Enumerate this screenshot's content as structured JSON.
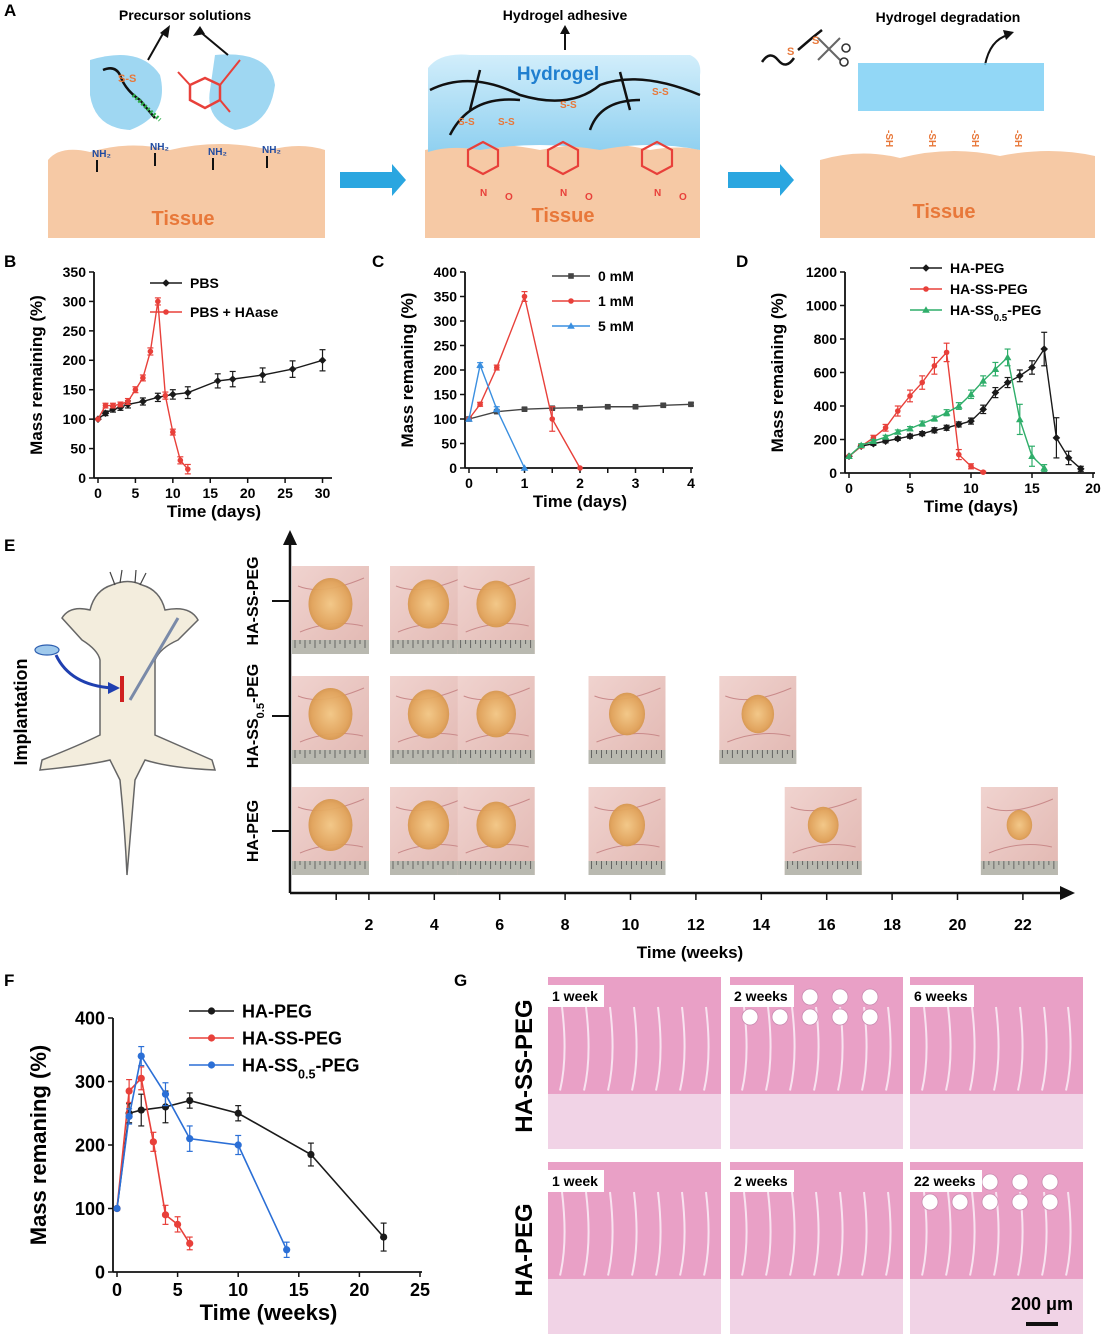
{
  "panel_labels": {
    "a": "A",
    "b": "B",
    "c": "C",
    "d": "D",
    "e": "E",
    "f": "F",
    "g": "G"
  },
  "schematic": {
    "precursor_title": "Precursor solutions",
    "adhesive_title": "Hydrogel adhesive",
    "degradation_title": "Hydrogel degradation",
    "hydrogel_label": "Hydrogel",
    "tissue_label": "Tissue",
    "amine_label": "NH₂",
    "disulfide_label": "S-S",
    "thiol_label": "-SH",
    "s_label": "S",
    "n_label": "N",
    "o_label": "O",
    "colors": {
      "tissue": "#f6c9a5",
      "hydrogel": "#9fd7f2",
      "arrow": "#2aa6e0",
      "tissue_text": "#e8783a",
      "hydrogel_text": "#1f7fd0"
    }
  },
  "panel_e": {
    "implantation_label": "Implantation",
    "rows": [
      "HA-SS-PEG",
      "HA-SS0.5-PEG",
      "HA-PEG"
    ],
    "xlabel": "Time (weeks)",
    "ticks": [
      "2",
      "4",
      "6",
      "8",
      "10",
      "12",
      "14",
      "16",
      "18",
      "20",
      "22"
    ],
    "photo_weeks": {
      "HA-SS-PEG": [
        1,
        4,
        6
      ],
      "HA-SS0.5-PEG": [
        1,
        4,
        6,
        10,
        14
      ],
      "HA-PEG": [
        1,
        4,
        6,
        10,
        16,
        22
      ]
    }
  },
  "panel_g": {
    "row_labels": [
      "HA-SS-PEG",
      "HA-PEG"
    ],
    "labels_top": [
      "1 week",
      "2 weeks",
      "6 weeks"
    ],
    "labels_bottom": [
      "1 week",
      "2 weeks",
      "22 weeks"
    ],
    "scale_bar": "200 μm"
  },
  "chart_data": [
    {
      "id": "B",
      "type": "line",
      "xlabel": "Time (days)",
      "ylabel": "Mass remaining (%)",
      "xlim": [
        0,
        31
      ],
      "ylim": [
        0,
        350
      ],
      "xticks": [
        0,
        5,
        10,
        15,
        20,
        25,
        30
      ],
      "yticks": [
        0,
        50,
        100,
        150,
        200,
        250,
        300,
        350
      ],
      "series": [
        {
          "name": "PBS",
          "color": "#1a1a1a",
          "marker": "diamond",
          "x": [
            0,
            1,
            2,
            3,
            4,
            6,
            8,
            10,
            12,
            16,
            18,
            22,
            26,
            30
          ],
          "y": [
            100,
            110,
            117,
            120,
            125,
            130,
            137,
            142,
            145,
            165,
            168,
            175,
            185,
            200
          ],
          "err": [
            0,
            4,
            5,
            5,
            6,
            6,
            7,
            8,
            10,
            12,
            13,
            12,
            14,
            18
          ]
        },
        {
          "name": "PBS + HAase",
          "color": "#e8403a",
          "marker": "circle",
          "x": [
            0,
            1,
            2,
            3,
            4,
            5,
            6,
            7,
            8,
            9,
            10,
            11,
            12
          ],
          "y": [
            100,
            123,
            123,
            125,
            130,
            150,
            170,
            215,
            300,
            140,
            78,
            30,
            15
          ],
          "err": [
            0,
            4,
            4,
            4,
            5,
            5,
            5,
            6,
            6,
            6,
            5,
            6,
            8
          ]
        }
      ]
    },
    {
      "id": "C",
      "type": "line",
      "xlabel": "Time (days)",
      "ylabel": "Mass remaning (%)",
      "xlim": [
        0,
        4
      ],
      "ylim": [
        0,
        400
      ],
      "xticks": [
        0,
        0.5,
        1,
        1.5,
        2,
        2.5,
        3,
        3.5,
        4
      ],
      "xtick_labels": [
        "0",
        "",
        "1",
        "",
        "2",
        "",
        "3",
        "",
        "4"
      ],
      "yticks": [
        0,
        50,
        100,
        150,
        200,
        250,
        300,
        350,
        400
      ],
      "series": [
        {
          "name": "0 mM",
          "color": "#444444",
          "marker": "square",
          "x": [
            0,
            0.5,
            1,
            1.5,
            2,
            2.5,
            3,
            3.5,
            4
          ],
          "y": [
            100,
            115,
            120,
            122,
            123,
            125,
            125,
            128,
            130
          ],
          "err": [
            0,
            3,
            3,
            3,
            4,
            3,
            3,
            3,
            3
          ]
        },
        {
          "name": "1 mM",
          "color": "#e8403a",
          "marker": "circle",
          "x": [
            0,
            0.2,
            0.5,
            1,
            1.5,
            2
          ],
          "y": [
            100,
            130,
            205,
            350,
            100,
            0
          ],
          "err": [
            0,
            4,
            5,
            10,
            25,
            0
          ]
        },
        {
          "name": "5 mM",
          "color": "#3a8fe0",
          "marker": "triangle",
          "x": [
            0,
            0.2,
            0.5,
            1
          ],
          "y": [
            100,
            210,
            120,
            0
          ],
          "err": [
            0,
            5,
            5,
            0
          ]
        }
      ]
    },
    {
      "id": "D",
      "type": "line",
      "xlabel": "Time (days)",
      "ylabel": "Mass remaining (%)",
      "xlim": [
        0,
        20
      ],
      "ylim": [
        0,
        1200
      ],
      "xticks": [
        0,
        5,
        10,
        15,
        20
      ],
      "yticks": [
        0,
        200,
        400,
        600,
        800,
        1000,
        1200
      ],
      "series": [
        {
          "name": "HA-PEG",
          "color": "#1a1a1a",
          "marker": "diamond",
          "x": [
            0,
            1,
            2,
            3,
            4,
            5,
            6,
            7,
            8,
            9,
            10,
            11,
            12,
            13,
            14,
            15,
            16,
            17,
            18,
            19
          ],
          "y": [
            100,
            160,
            175,
            190,
            205,
            220,
            235,
            255,
            270,
            290,
            310,
            380,
            480,
            540,
            580,
            630,
            740,
            210,
            90,
            25
          ],
          "err": [
            0,
            8,
            10,
            10,
            10,
            12,
            12,
            15,
            15,
            15,
            18,
            25,
            30,
            30,
            35,
            40,
            100,
            120,
            40,
            15
          ]
        },
        {
          "name": "HA-SS-PEG",
          "color": "#e8403a",
          "marker": "circle",
          "x": [
            0,
            1,
            2,
            3,
            4,
            5,
            6,
            7,
            8,
            9,
            10,
            11
          ],
          "y": [
            100,
            160,
            210,
            270,
            370,
            460,
            540,
            640,
            720,
            110,
            40,
            5
          ],
          "err": [
            0,
            10,
            15,
            20,
            30,
            35,
            40,
            50,
            55,
            30,
            15,
            5
          ]
        },
        {
          "name": "HA-SS0.5-PEG",
          "color": "#2fae6a",
          "marker": "triangle",
          "x": [
            0,
            1,
            2,
            3,
            4,
            5,
            6,
            7,
            8,
            9,
            10,
            11,
            12,
            13,
            14,
            15,
            16
          ],
          "y": [
            100,
            165,
            190,
            215,
            245,
            265,
            295,
            325,
            360,
            400,
            470,
            550,
            620,
            690,
            320,
            100,
            30
          ],
          "err": [
            0,
            10,
            10,
            10,
            12,
            12,
            15,
            15,
            18,
            20,
            25,
            30,
            40,
            50,
            90,
            60,
            20
          ]
        }
      ]
    },
    {
      "id": "F",
      "type": "line",
      "xlabel": "Time (weeks)",
      "ylabel": "Mass remaning (%)",
      "xlim": [
        0,
        25
      ],
      "ylim": [
        0,
        400
      ],
      "xticks": [
        0,
        5,
        10,
        15,
        20,
        25
      ],
      "yticks": [
        0,
        100,
        200,
        300,
        400
      ],
      "series": [
        {
          "name": "HA-PEG",
          "color": "#1a1a1a",
          "marker": "circle",
          "x": [
            0,
            1,
            2,
            4,
            6,
            10,
            16,
            22
          ],
          "y": [
            100,
            250,
            255,
            260,
            270,
            250,
            185,
            55
          ],
          "err": [
            0,
            15,
            25,
            25,
            12,
            12,
            18,
            22
          ]
        },
        {
          "name": "HA-SS-PEG",
          "color": "#e8403a",
          "marker": "circle",
          "x": [
            0,
            1,
            2,
            3,
            4,
            5,
            6
          ],
          "y": [
            100,
            285,
            305,
            205,
            90,
            75,
            45
          ],
          "err": [
            0,
            18,
            18,
            15,
            15,
            12,
            10
          ]
        },
        {
          "name": "HA-SS0.5-PEG",
          "color": "#2b6fd6",
          "marker": "circle",
          "x": [
            0,
            1,
            2,
            4,
            6,
            10,
            14
          ],
          "y": [
            100,
            245,
            340,
            280,
            210,
            200,
            35
          ],
          "err": [
            0,
            12,
            15,
            18,
            20,
            15,
            12
          ]
        }
      ]
    }
  ]
}
